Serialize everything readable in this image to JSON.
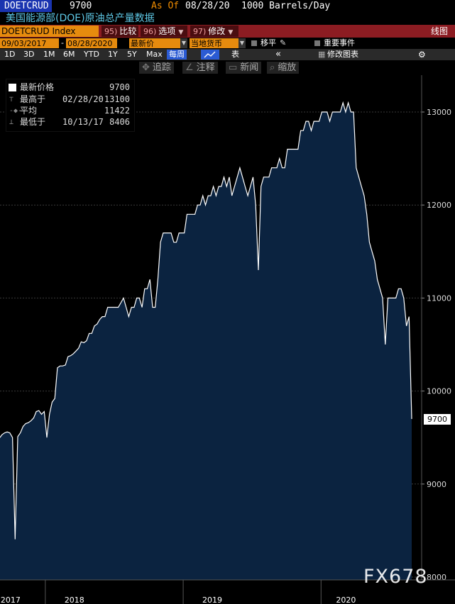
{
  "header": {
    "ticker": "DOETCRUD",
    "price": "9700",
    "as_of_label": "As Of",
    "as_of_date": "08/28/20",
    "units": "1000 Barrels/Day",
    "subtitle": "美国能源部(DOE)原油总产量数据"
  },
  "toolbar": {
    "index_field": "DOETCRUD Index",
    "compare": {
      "num": "95)",
      "label": "比较"
    },
    "options": {
      "num": "96)",
      "label": "选项"
    },
    "edit": {
      "num": "97)",
      "label": "修改"
    },
    "chart_type": "线图"
  },
  "date_row": {
    "start": "09/03/2017",
    "sep": "-",
    "end": "08/28/2020",
    "field": "最新价",
    "currency": "当地货币",
    "smooth_label": "移平",
    "events_label": "重要事件"
  },
  "range_row": {
    "ranges": [
      "1D",
      "3D",
      "1M",
      "6M",
      "YTD",
      "1Y",
      "5Y",
      "Max"
    ],
    "period": "每周",
    "table_label": "表",
    "collapse": "«",
    "edit_chart": "修改图表",
    "settings_icon": "gear-icon"
  },
  "tools": [
    {
      "icon": "crosshair-icon",
      "glyph": "✥",
      "label": "追踪"
    },
    {
      "icon": "pencil-icon",
      "glyph": "∠",
      "label": "注释"
    },
    {
      "icon": "news-icon",
      "glyph": "▭",
      "label": "新闻"
    },
    {
      "icon": "magnifier-icon",
      "glyph": "⌕",
      "label": "缩放"
    }
  ],
  "legend": {
    "last": {
      "name": "最新价格",
      "date": "",
      "value": "9700"
    },
    "high": {
      "name": "最高于",
      "date": "02/28/20",
      "value": "13100"
    },
    "avg": {
      "name": "平均",
      "date": "",
      "value": "11422"
    },
    "low": {
      "name": "最低于",
      "date": "10/13/17",
      "value": "8406"
    }
  },
  "last_label": "9700",
  "watermark": "FX678",
  "colors": {
    "area_fill": "#0b2340",
    "line": "#ffffff",
    "bg": "#000000",
    "accent_orange": "#e68b0e",
    "bar_red": "#8c1c22"
  },
  "chart_data": {
    "type": "area",
    "title": "美国能源部(DOE)原油总产量数据",
    "ylabel": "1000 Barrels/Day",
    "ylim": [
      8000,
      13500
    ],
    "yticks": [
      8000,
      9000,
      10000,
      11000,
      12000,
      13000
    ],
    "x_start": "2017-09-03",
    "x_end": "2020-08-28",
    "xticks": [
      {
        "label": "2017",
        "date": "2017-10-01"
      },
      {
        "label": "2018",
        "date": "2018-03-19"
      },
      {
        "label": "2019",
        "date": "2019-03-19"
      },
      {
        "label": "2020",
        "date": "2020-03-07"
      }
    ],
    "points": [
      [
        "2017-09-01",
        9500
      ],
      [
        "2017-09-08",
        9530
      ],
      [
        "2017-09-15",
        9550
      ],
      [
        "2017-09-22",
        9560
      ],
      [
        "2017-09-29",
        9550
      ],
      [
        "2017-10-06",
        9500
      ],
      [
        "2017-10-13",
        8406
      ],
      [
        "2017-10-20",
        9510
      ],
      [
        "2017-10-27",
        9550
      ],
      [
        "2017-11-03",
        9620
      ],
      [
        "2017-11-10",
        9650
      ],
      [
        "2017-11-17",
        9660
      ],
      [
        "2017-11-24",
        9680
      ],
      [
        "2017-12-01",
        9710
      ],
      [
        "2017-12-08",
        9780
      ],
      [
        "2017-12-15",
        9790
      ],
      [
        "2017-12-22",
        9750
      ],
      [
        "2017-12-29",
        9780
      ],
      [
        "2018-01-05",
        9500
      ],
      [
        "2018-01-12",
        9750
      ],
      [
        "2018-01-19",
        9880
      ],
      [
        "2018-01-26",
        9920
      ],
      [
        "2018-02-02",
        10250
      ],
      [
        "2018-02-09",
        10270
      ],
      [
        "2018-02-16",
        10270
      ],
      [
        "2018-02-23",
        10280
      ],
      [
        "2018-03-02",
        10370
      ],
      [
        "2018-03-09",
        10380
      ],
      [
        "2018-03-16",
        10400
      ],
      [
        "2018-03-23",
        10430
      ],
      [
        "2018-03-30",
        10460
      ],
      [
        "2018-04-06",
        10530
      ],
      [
        "2018-04-13",
        10520
      ],
      [
        "2018-04-20",
        10540
      ],
      [
        "2018-04-27",
        10620
      ],
      [
        "2018-05-04",
        10620
      ],
      [
        "2018-05-11",
        10700
      ],
      [
        "2018-05-18",
        10720
      ],
      [
        "2018-05-25",
        10770
      ],
      [
        "2018-06-01",
        10800
      ],
      [
        "2018-06-08",
        10800
      ],
      [
        "2018-06-15",
        10900
      ],
      [
        "2018-06-22",
        10900
      ],
      [
        "2018-06-29",
        10900
      ],
      [
        "2018-07-06",
        10900
      ],
      [
        "2018-07-13",
        10900
      ],
      [
        "2018-07-20",
        10950
      ],
      [
        "2018-07-27",
        11000
      ],
      [
        "2018-08-03",
        10900
      ],
      [
        "2018-08-10",
        10800
      ],
      [
        "2018-08-17",
        10900
      ],
      [
        "2018-08-24",
        10900
      ],
      [
        "2018-08-31",
        11000
      ],
      [
        "2018-09-07",
        11000
      ],
      [
        "2018-09-14",
        10900
      ],
      [
        "2018-09-21",
        11100
      ],
      [
        "2018-09-28",
        11100
      ],
      [
        "2018-10-05",
        11200
      ],
      [
        "2018-10-12",
        10900
      ],
      [
        "2018-10-19",
        10900
      ],
      [
        "2018-10-26",
        11200
      ],
      [
        "2018-11-02",
        11600
      ],
      [
        "2018-11-09",
        11700
      ],
      [
        "2018-11-16",
        11700
      ],
      [
        "2018-11-23",
        11700
      ],
      [
        "2018-11-30",
        11700
      ],
      [
        "2018-12-07",
        11600
      ],
      [
        "2018-12-14",
        11600
      ],
      [
        "2018-12-21",
        11700
      ],
      [
        "2018-12-28",
        11700
      ],
      [
        "2019-01-04",
        11700
      ],
      [
        "2019-01-11",
        11900
      ],
      [
        "2019-01-18",
        11900
      ],
      [
        "2019-01-25",
        11900
      ],
      [
        "2019-02-01",
        11900
      ],
      [
        "2019-02-08",
        12000
      ],
      [
        "2019-02-15",
        12000
      ],
      [
        "2019-02-22",
        12100
      ],
      [
        "2019-03-01",
        12000
      ],
      [
        "2019-03-08",
        12100
      ],
      [
        "2019-03-15",
        12100
      ],
      [
        "2019-03-22",
        12200
      ],
      [
        "2019-03-29",
        12100
      ],
      [
        "2019-04-05",
        12200
      ],
      [
        "2019-04-12",
        12200
      ],
      [
        "2019-04-19",
        12300
      ],
      [
        "2019-04-26",
        12200
      ],
      [
        "2019-05-03",
        12300
      ],
      [
        "2019-05-10",
        12100
      ],
      [
        "2019-05-17",
        12200
      ],
      [
        "2019-05-24",
        12300
      ],
      [
        "2019-05-31",
        12400
      ],
      [
        "2019-06-07",
        12300
      ],
      [
        "2019-06-14",
        12200
      ],
      [
        "2019-06-21",
        12100
      ],
      [
        "2019-06-28",
        12200
      ],
      [
        "2019-07-05",
        12300
      ],
      [
        "2019-07-12",
        12000
      ],
      [
        "2019-07-19",
        11300
      ],
      [
        "2019-07-26",
        12200
      ],
      [
        "2019-08-02",
        12300
      ],
      [
        "2019-08-09",
        12300
      ],
      [
        "2019-08-16",
        12300
      ],
      [
        "2019-08-23",
        12400
      ],
      [
        "2019-08-30",
        12400
      ],
      [
        "2019-09-06",
        12400
      ],
      [
        "2019-09-13",
        12500
      ],
      [
        "2019-09-20",
        12400
      ],
      [
        "2019-09-27",
        12400
      ],
      [
        "2019-10-04",
        12600
      ],
      [
        "2019-10-11",
        12600
      ],
      [
        "2019-10-18",
        12600
      ],
      [
        "2019-10-25",
        12600
      ],
      [
        "2019-11-01",
        12600
      ],
      [
        "2019-11-08",
        12800
      ],
      [
        "2019-11-15",
        12800
      ],
      [
        "2019-11-22",
        12900
      ],
      [
        "2019-11-29",
        12900
      ],
      [
        "2019-12-06",
        12800
      ],
      [
        "2019-12-13",
        12900
      ],
      [
        "2019-12-20",
        12900
      ],
      [
        "2019-12-27",
        12900
      ],
      [
        "2020-01-03",
        13000
      ],
      [
        "2020-01-10",
        13000
      ],
      [
        "2020-01-17",
        13000
      ],
      [
        "2020-01-24",
        12900
      ],
      [
        "2020-01-31",
        13000
      ],
      [
        "2020-02-07",
        13000
      ],
      [
        "2020-02-14",
        13000
      ],
      [
        "2020-02-21",
        13000
      ],
      [
        "2020-02-28",
        13100
      ],
      [
        "2020-03-06",
        13000
      ],
      [
        "2020-03-13",
        13100
      ],
      [
        "2020-03-20",
        13000
      ],
      [
        "2020-03-27",
        13000
      ],
      [
        "2020-04-03",
        12400
      ],
      [
        "2020-04-10",
        12300
      ],
      [
        "2020-04-17",
        12200
      ],
      [
        "2020-04-24",
        12100
      ],
      [
        "2020-05-01",
        11900
      ],
      [
        "2020-05-08",
        11600
      ],
      [
        "2020-05-15",
        11500
      ],
      [
        "2020-05-22",
        11400
      ],
      [
        "2020-05-29",
        11200
      ],
      [
        "2020-06-05",
        11100
      ],
      [
        "2020-06-12",
        11000
      ],
      [
        "2020-06-19",
        10500
      ],
      [
        "2020-06-26",
        11000
      ],
      [
        "2020-07-03",
        11000
      ],
      [
        "2020-07-10",
        11000
      ],
      [
        "2020-07-17",
        11000
      ],
      [
        "2020-07-24",
        11100
      ],
      [
        "2020-07-31",
        11100
      ],
      [
        "2020-08-07",
        11000
      ],
      [
        "2020-08-14",
        10700
      ],
      [
        "2020-08-21",
        10800
      ],
      [
        "2020-08-28",
        9700
      ]
    ]
  }
}
